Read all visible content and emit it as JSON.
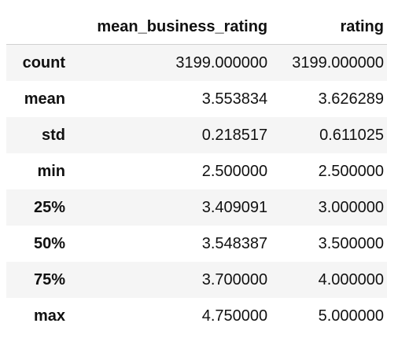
{
  "table": {
    "index_header": "",
    "columns": [
      "mean_business_rating",
      "rating"
    ],
    "rows": [
      {
        "label": "count",
        "values": [
          "3199.000000",
          "3199.000000"
        ]
      },
      {
        "label": "mean",
        "values": [
          "3.553834",
          "3.626289"
        ]
      },
      {
        "label": "std",
        "values": [
          "0.218517",
          "0.611025"
        ]
      },
      {
        "label": "min",
        "values": [
          "2.500000",
          "2.500000"
        ]
      },
      {
        "label": "25%",
        "values": [
          "3.409091",
          "3.000000"
        ]
      },
      {
        "label": "50%",
        "values": [
          "3.548387",
          "3.500000"
        ]
      },
      {
        "label": "75%",
        "values": [
          "3.700000",
          "4.000000"
        ]
      },
      {
        "label": "max",
        "values": [
          "4.750000",
          "5.000000"
        ]
      }
    ]
  },
  "colors": {
    "stripe": "#f5f5f5",
    "header_rule": "#d0d0d0",
    "text": "#111111"
  }
}
